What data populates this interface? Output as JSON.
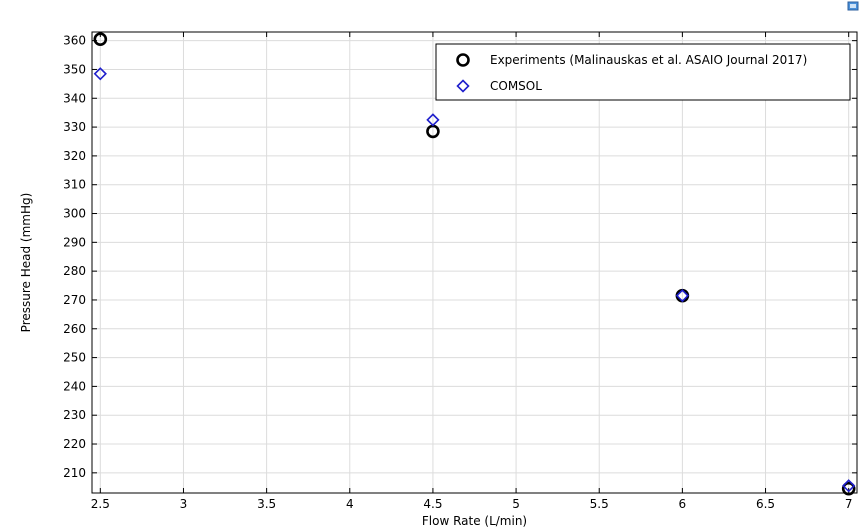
{
  "chart_data": {
    "type": "scatter",
    "title": "",
    "xlabel": "Flow Rate (L/min)",
    "ylabel": "Pressure Head (mmHg)",
    "xlim": [
      2.45,
      7.05
    ],
    "ylim": [
      203,
      363
    ],
    "xticks": [
      2.5,
      3,
      3.5,
      4,
      4.5,
      5,
      5.5,
      6,
      6.5,
      7
    ],
    "yticks": [
      210,
      220,
      230,
      240,
      250,
      260,
      270,
      280,
      290,
      300,
      310,
      320,
      330,
      340,
      350,
      360
    ],
    "grid": true,
    "legend_position": "top-right",
    "series": [
      {
        "name": "Experiments (Malinauskas et al. ASAIO Journal 2017)",
        "marker": "circle",
        "color": "#000000",
        "x": [
          2.5,
          4.5,
          6.0,
          7.0
        ],
        "y": [
          360.5,
          328.5,
          271.5,
          204.5
        ]
      },
      {
        "name": "COMSOL",
        "marker": "diamond",
        "color": "#1f1fcc",
        "x": [
          2.5,
          4.5,
          6.0,
          7.0
        ],
        "y": [
          348.5,
          332.5,
          271.5,
          205.5
        ]
      }
    ]
  }
}
